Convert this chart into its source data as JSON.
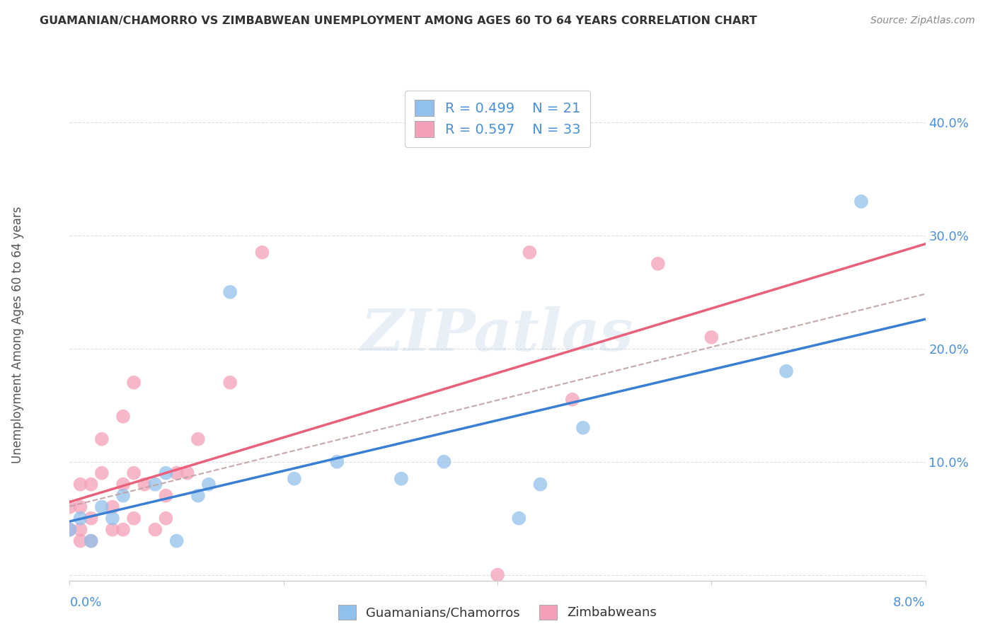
{
  "title": "GUAMANIAN/CHAMORRO VS ZIMBABWEAN UNEMPLOYMENT AMONG AGES 60 TO 64 YEARS CORRELATION CHART",
  "source": "Source: ZipAtlas.com",
  "ylabel": "Unemployment Among Ages 60 to 64 years",
  "xlim": [
    0.0,
    0.08
  ],
  "ylim": [
    -0.005,
    0.43
  ],
  "guamanian_R": "0.499",
  "guamanian_N": "21",
  "zimbabwean_R": "0.597",
  "zimbabwean_N": "33",
  "guamanian_color": "#92C0EC",
  "zimbabwean_color": "#F4A0B8",
  "guamanian_line_color": "#3A7FD4",
  "zimbabwean_line_color": "#E8607A",
  "dashed_line_color": "#C0A0A0",
  "background_color": "#FFFFFF",
  "grid_color": "#DDDDDD",
  "guamanian_x": [
    0.0,
    0.001,
    0.002,
    0.003,
    0.004,
    0.005,
    0.008,
    0.009,
    0.01,
    0.012,
    0.013,
    0.015,
    0.021,
    0.025,
    0.031,
    0.035,
    0.042,
    0.044,
    0.048,
    0.067,
    0.074
  ],
  "guamanian_y": [
    0.04,
    0.05,
    0.03,
    0.06,
    0.05,
    0.07,
    0.08,
    0.09,
    0.03,
    0.07,
    0.08,
    0.25,
    0.085,
    0.1,
    0.085,
    0.1,
    0.05,
    0.08,
    0.13,
    0.18,
    0.33
  ],
  "zimbabwean_x": [
    0.0,
    0.0,
    0.001,
    0.001,
    0.001,
    0.001,
    0.002,
    0.002,
    0.002,
    0.003,
    0.003,
    0.004,
    0.004,
    0.005,
    0.005,
    0.005,
    0.006,
    0.006,
    0.006,
    0.007,
    0.008,
    0.009,
    0.009,
    0.01,
    0.011,
    0.012,
    0.015,
    0.018,
    0.04,
    0.043,
    0.047,
    0.055,
    0.06
  ],
  "zimbabwean_y": [
    0.04,
    0.06,
    0.03,
    0.04,
    0.06,
    0.08,
    0.03,
    0.05,
    0.08,
    0.09,
    0.12,
    0.04,
    0.06,
    0.04,
    0.08,
    0.14,
    0.05,
    0.09,
    0.17,
    0.08,
    0.04,
    0.05,
    0.07,
    0.09,
    0.09,
    0.12,
    0.17,
    0.285,
    0.0,
    0.285,
    0.155,
    0.275,
    0.21
  ],
  "watermark_text": "ZIPatlas",
  "ytick_positions": [
    0.0,
    0.1,
    0.2,
    0.3,
    0.4
  ],
  "ytick_labels": [
    "",
    "10.0%",
    "20.0%",
    "30.0%",
    "40.0%"
  ],
  "tick_label_color": "#4A90D9",
  "title_color": "#333333",
  "source_color": "#888888",
  "ylabel_color": "#555555"
}
